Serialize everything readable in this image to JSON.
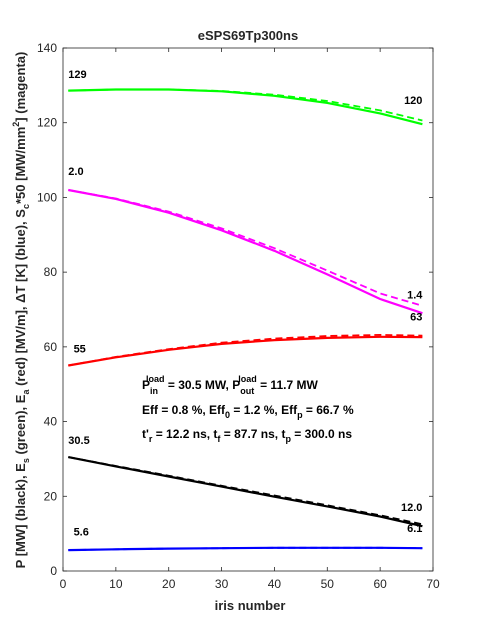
{
  "chart_data": {
    "type": "line",
    "title": "eSPS69Tp300ns",
    "xlabel": "iris number",
    "ylabel": {
      "p1": "P [MW] (black), E",
      "s1": "s",
      "p2": " (green), E",
      "s2": "a",
      "p3": " (red) [MV/m], ",
      "delta": "Δ",
      "p4": "T [K] (blue), S",
      "s3": "c",
      "p5": "*50 [MW/mm",
      "sup": "2",
      "p6": "] (magenta)"
    },
    "xlim": [
      0,
      70
    ],
    "ylim": [
      0,
      140
    ],
    "xticks": [
      "0",
      "10",
      "20",
      "30",
      "40",
      "50",
      "60",
      "70"
    ],
    "yticks": [
      "0",
      "20",
      "40",
      "60",
      "80",
      "100",
      "120",
      "140"
    ],
    "grid": false,
    "series": [
      {
        "color": "#00ff00",
        "style": "solid",
        "x": [
          1,
          10,
          20,
          30,
          40,
          50,
          60,
          68
        ],
        "values": [
          128.6,
          128.9,
          128.9,
          128.4,
          127.2,
          125.3,
          122.5,
          119.6
        ]
      },
      {
        "color": "#00ff00",
        "style": "dashed",
        "x": [
          1,
          10,
          20,
          30,
          40,
          50,
          60,
          68
        ],
        "values": [
          128.6,
          128.9,
          128.9,
          128.5,
          127.5,
          125.8,
          123.3,
          120.6
        ]
      },
      {
        "color": "#ff00ff",
        "style": "solid",
        "x": [
          1,
          10,
          20,
          30,
          40,
          50,
          60,
          68
        ],
        "values": [
          102.0,
          99.6,
          95.9,
          91.2,
          85.7,
          79.4,
          72.8,
          69.0
        ]
      },
      {
        "color": "#ff00ff",
        "style": "dashed",
        "x": [
          1,
          10,
          20,
          30,
          40,
          50,
          60,
          68
        ],
        "values": [
          102.0,
          99.7,
          96.2,
          91.7,
          86.4,
          80.4,
          74.3,
          71.0
        ]
      },
      {
        "color": "#ff0000",
        "style": "solid",
        "x": [
          1,
          10,
          20,
          30,
          40,
          50,
          60,
          68
        ],
        "values": [
          55.0,
          57.2,
          59.2,
          60.8,
          61.8,
          62.4,
          62.7,
          62.6
        ]
      },
      {
        "color": "#ff0000",
        "style": "dashed",
        "x": [
          1,
          10,
          20,
          30,
          40,
          50,
          60,
          68
        ],
        "values": [
          55.0,
          57.3,
          59.4,
          61.1,
          62.2,
          62.9,
          63.2,
          63.0
        ]
      },
      {
        "color": "#000000",
        "style": "solid",
        "x": [
          1,
          10,
          20,
          30,
          40,
          50,
          60,
          68
        ],
        "values": [
          30.5,
          28.0,
          25.3,
          22.6,
          19.9,
          17.3,
          14.6,
          12.0
        ]
      },
      {
        "color": "#000000",
        "style": "dashed",
        "x": [
          1,
          10,
          20,
          30,
          40,
          50,
          60,
          68
        ],
        "values": [
          30.5,
          28.1,
          25.5,
          22.8,
          20.2,
          17.6,
          14.9,
          12.5
        ]
      },
      {
        "color": "#0000ff",
        "style": "solid",
        "x": [
          1,
          10,
          20,
          30,
          40,
          50,
          60,
          68
        ],
        "values": [
          5.6,
          5.8,
          6.0,
          6.1,
          6.2,
          6.2,
          6.2,
          6.1
        ]
      },
      {
        "color": "#0000ff",
        "style": "dashed",
        "x": [
          1,
          10,
          20,
          30,
          40,
          50,
          60,
          68
        ],
        "values": [
          5.6,
          5.8,
          6.0,
          6.1,
          6.2,
          6.2,
          6.2,
          6.1
        ]
      }
    ],
    "end_labels": [
      {
        "text": "129",
        "x": 1,
        "y": 132,
        "anchor": "start"
      },
      {
        "text": "120",
        "x": 68,
        "y": 125,
        "anchor": "end"
      },
      {
        "text": "2.0",
        "x": 1,
        "y": 106,
        "anchor": "start"
      },
      {
        "text": "1.4",
        "x": 68,
        "y": 73,
        "anchor": "end"
      },
      {
        "text": "63",
        "x": 68,
        "y": 67,
        "anchor": "end"
      },
      {
        "text": "55",
        "x": 2,
        "y": 58.5,
        "anchor": "start"
      },
      {
        "text": "30.5",
        "x": 1,
        "y": 34,
        "anchor": "start"
      },
      {
        "text": "12.0",
        "x": 68,
        "y": 16,
        "anchor": "end"
      },
      {
        "text": "6.1",
        "x": 68,
        "y": 10.5,
        "anchor": "end"
      },
      {
        "text": "5.6",
        "x": 2,
        "y": 9.5,
        "anchor": "start"
      }
    ],
    "annotations": {
      "line1": {
        "p1": "P",
        "p1_sub": "in",
        "p1_sup": "load",
        "p2": " =  30.5 MW, P",
        "p2_sub": "out",
        "p2_sup": "load",
        "p3": " =  11.7 MW"
      },
      "line2": {
        "p1": "Eff =  0.8 %, Eff",
        "s1": "0",
        "p2": " =  1.2 %, Eff",
        "s2": "p",
        "p3": " = 66.7 %"
      },
      "line3": {
        "p1": "t'",
        "s1": "r",
        "p2": " = 12.2 ns, t",
        "s2": "f",
        "p3": " = 87.7 ns, t",
        "s3": "p",
        "p4": " = 300.0 ns"
      }
    }
  }
}
